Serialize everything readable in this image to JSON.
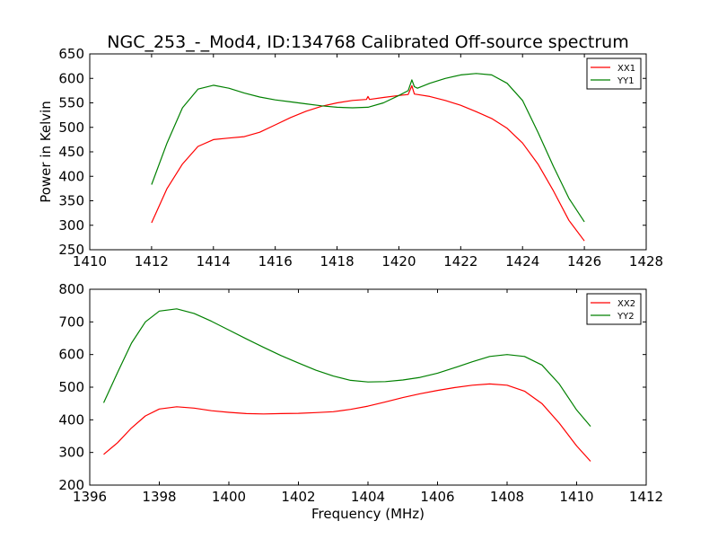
{
  "title": "NGC_253_-_Mod4, ID:134768 Calibrated Off-source spectrum",
  "ylabel": "Power in Kelvin",
  "xlabel": "Frequency (MHz)",
  "chart_data": [
    {
      "type": "line",
      "xlim": [
        1410,
        1428
      ],
      "ylim": [
        250,
        650
      ],
      "xticks": [
        1410,
        1412,
        1414,
        1416,
        1418,
        1420,
        1422,
        1424,
        1426,
        1428
      ],
      "yticks": [
        250,
        300,
        350,
        400,
        450,
        500,
        550,
        600,
        650
      ],
      "xlabel": "",
      "ylabel": "Power in Kelvin",
      "grid": false,
      "legend_position": "top-right",
      "series": [
        {
          "name": "XX1",
          "color": "#ff0000",
          "x": [
            1412.0,
            1412.5,
            1413.0,
            1413.5,
            1414.0,
            1414.5,
            1415.0,
            1415.5,
            1416.0,
            1416.5,
            1417.0,
            1417.5,
            1418.0,
            1418.5,
            1418.95,
            1419.0,
            1419.05,
            1419.5,
            1420.0,
            1420.3,
            1420.42,
            1420.5,
            1420.6,
            1421.0,
            1421.5,
            1422.0,
            1422.5,
            1423.0,
            1423.5,
            1424.0,
            1424.5,
            1425.0,
            1425.5,
            1426.0
          ],
          "y": [
            305,
            375,
            425,
            461,
            475,
            478,
            481,
            490,
            505,
            520,
            533,
            543,
            550,
            555,
            557,
            563,
            557,
            561,
            565,
            567,
            585,
            568,
            567,
            563,
            555,
            545,
            532,
            518,
            498,
            468,
            425,
            370,
            310,
            268
          ]
        },
        {
          "name": "YY1",
          "color": "#008000",
          "x": [
            1412.0,
            1412.5,
            1413.0,
            1413.5,
            1414.0,
            1414.5,
            1415.0,
            1415.5,
            1416.0,
            1416.5,
            1417.0,
            1417.5,
            1418.0,
            1418.5,
            1419.0,
            1419.5,
            1420.0,
            1420.3,
            1420.42,
            1420.5,
            1420.6,
            1421.0,
            1421.5,
            1422.0,
            1422.5,
            1423.0,
            1423.5,
            1424.0,
            1424.5,
            1425.0,
            1425.5,
            1426.0
          ],
          "y": [
            383,
            468,
            540,
            578,
            586,
            580,
            570,
            562,
            556,
            552,
            548,
            544,
            541,
            540,
            541,
            550,
            565,
            575,
            597,
            583,
            580,
            590,
            600,
            607,
            610,
            607,
            590,
            555,
            490,
            420,
            355,
            307
          ]
        }
      ]
    },
    {
      "type": "line",
      "xlim": [
        1396,
        1412
      ],
      "ylim": [
        200,
        800
      ],
      "xticks": [
        1396,
        1398,
        1400,
        1402,
        1404,
        1406,
        1408,
        1410,
        1412
      ],
      "yticks": [
        200,
        300,
        400,
        500,
        600,
        700,
        800
      ],
      "xlabel": "Frequency (MHz)",
      "ylabel": "",
      "grid": false,
      "legend_position": "top-right",
      "series": [
        {
          "name": "XX2",
          "color": "#ff0000",
          "x": [
            1396.4,
            1396.8,
            1397.2,
            1397.6,
            1398.0,
            1398.5,
            1399.0,
            1399.5,
            1400.0,
            1400.5,
            1401.0,
            1401.5,
            1402.0,
            1402.5,
            1403.0,
            1403.5,
            1404.0,
            1404.5,
            1405.0,
            1405.5,
            1406.0,
            1406.5,
            1407.0,
            1407.5,
            1408.0,
            1408.5,
            1409.0,
            1409.5,
            1410.0,
            1410.4
          ],
          "y": [
            294,
            330,
            375,
            412,
            433,
            440,
            436,
            428,
            423,
            419,
            418,
            419,
            420,
            422,
            425,
            432,
            442,
            455,
            468,
            480,
            490,
            499,
            506,
            510,
            506,
            488,
            450,
            390,
            320,
            273
          ]
        },
        {
          "name": "YY2",
          "color": "#008000",
          "x": [
            1396.4,
            1396.8,
            1397.2,
            1397.6,
            1398.0,
            1398.5,
            1399.0,
            1399.5,
            1400.0,
            1400.5,
            1401.0,
            1401.5,
            1402.0,
            1402.5,
            1403.0,
            1403.5,
            1404.0,
            1404.5,
            1405.0,
            1405.5,
            1406.0,
            1406.5,
            1407.0,
            1407.5,
            1408.0,
            1408.5,
            1409.0,
            1409.5,
            1410.0,
            1410.4
          ],
          "y": [
            452,
            545,
            635,
            700,
            733,
            740,
            726,
            702,
            675,
            648,
            622,
            597,
            574,
            552,
            534,
            521,
            516,
            517,
            522,
            530,
            543,
            560,
            578,
            594,
            600,
            594,
            568,
            510,
            430,
            380
          ]
        }
      ]
    }
  ]
}
